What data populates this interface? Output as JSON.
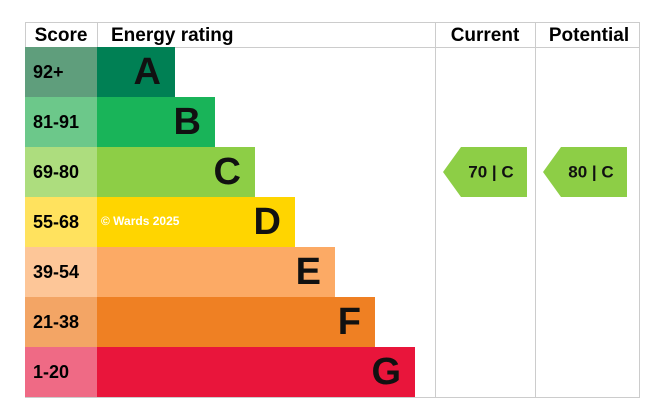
{
  "header": {
    "score": "Score",
    "rating": "Energy rating",
    "current": "Current",
    "potential": "Potential"
  },
  "bands": [
    {
      "score": "92+",
      "letter": "A",
      "color": "#008054",
      "light": "#5f9e7c"
    },
    {
      "score": "81-91",
      "letter": "B",
      "color": "#19b459",
      "light": "#6cc88a"
    },
    {
      "score": "69-80",
      "letter": "C",
      "color": "#8dce46",
      "light": "#addd7e"
    },
    {
      "score": "55-68",
      "letter": "D",
      "color": "#ffd500",
      "light": "#ffe25e"
    },
    {
      "score": "39-54",
      "letter": "E",
      "color": "#fcaa65",
      "light": "#fdc698"
    },
    {
      "score": "21-38",
      "letter": "F",
      "color": "#ef8023",
      "light": "#f3a565"
    },
    {
      "score": "1-20",
      "letter": "G",
      "color": "#e9153b",
      "light": "#ef6a85"
    }
  ],
  "watermark": "© Wards 2025",
  "current": {
    "label": "70 | C",
    "color": "#8dce46"
  },
  "potential": {
    "label": "80 | C",
    "color": "#8dce46"
  }
}
